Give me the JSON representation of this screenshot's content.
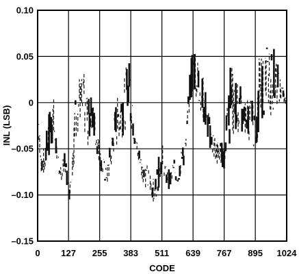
{
  "chart_data": {
    "type": "scatter",
    "title": "",
    "xlabel": "CODE",
    "ylabel": "INL (LSB)",
    "xlim": [
      0,
      1024
    ],
    "ylim": [
      -0.15,
      0.1
    ],
    "x_ticks": [
      0,
      127,
      255,
      383,
      511,
      639,
      767,
      895,
      1024
    ],
    "x_tick_labels": [
      "0",
      "127",
      "255",
      "383",
      "511",
      "639",
      "767",
      "895",
      "1024"
    ],
    "y_ticks": [
      -0.15,
      -0.1,
      -0.05,
      0,
      0.05,
      0.1
    ],
    "y_tick_labels": [
      "–0.15",
      "–0.10",
      "–0.05",
      "0",
      "0.05",
      "0.10"
    ],
    "grid": true,
    "series": [
      {
        "name": "",
        "x": [
          0,
          16,
          32,
          48,
          64,
          80,
          96,
          112,
          128,
          144,
          160,
          176,
          192,
          208,
          224,
          240,
          256,
          272,
          288,
          304,
          320,
          336,
          352,
          368,
          384,
          400,
          416,
          432,
          448,
          464,
          480,
          496,
          512,
          528,
          544,
          560,
          576,
          592,
          608,
          624,
          640,
          656,
          672,
          688,
          704,
          720,
          736,
          752,
          768,
          784,
          800,
          816,
          832,
          848,
          864,
          880,
          896,
          912,
          928,
          944,
          960,
          976,
          992,
          1008,
          1024
        ],
        "y_min": [
          -0.03,
          -0.08,
          -0.075,
          -0.06,
          -0.045,
          -0.07,
          -0.085,
          -0.075,
          -0.11,
          -0.08,
          -0.04,
          -0.02,
          -0.035,
          -0.05,
          -0.035,
          -0.05,
          -0.07,
          -0.085,
          -0.09,
          -0.07,
          -0.05,
          -0.045,
          -0.035,
          -0.025,
          -0.03,
          -0.05,
          -0.07,
          -0.085,
          -0.095,
          -0.1,
          -0.11,
          -0.095,
          -0.075,
          -0.09,
          -0.095,
          -0.085,
          -0.09,
          -0.075,
          -0.065,
          -0.01,
          0.01,
          0.005,
          -0.01,
          -0.03,
          -0.045,
          -0.06,
          -0.07,
          -0.065,
          -0.075,
          -0.05,
          -0.04,
          -0.035,
          -0.03,
          -0.035,
          -0.04,
          -0.045,
          -0.05,
          -0.03,
          -0.015,
          -0.01,
          -0.015,
          -0.01,
          -0.005,
          0.0,
          -0.01
        ],
        "y_max": [
          -0.005,
          -0.055,
          -0.04,
          -0.005,
          0.015,
          -0.045,
          -0.065,
          -0.05,
          -0.085,
          -0.04,
          0.05,
          0.025,
          0.035,
          0.005,
          0.01,
          -0.015,
          -0.045,
          -0.06,
          -0.065,
          -0.03,
          0.0,
          0.015,
          0.025,
          0.045,
          0.05,
          -0.02,
          -0.045,
          -0.065,
          -0.065,
          -0.07,
          -0.085,
          -0.06,
          -0.04,
          -0.07,
          -0.07,
          -0.06,
          -0.065,
          -0.05,
          -0.035,
          0.025,
          0.08,
          0.05,
          0.04,
          0.02,
          -0.01,
          -0.025,
          -0.035,
          -0.04,
          -0.045,
          0.045,
          0.04,
          0.03,
          0.025,
          0.0,
          0.01,
          0.005,
          -0.005,
          0.055,
          0.05,
          0.065,
          0.06,
          0.065,
          0.035,
          0.02,
          0.005
        ]
      }
    ]
  }
}
